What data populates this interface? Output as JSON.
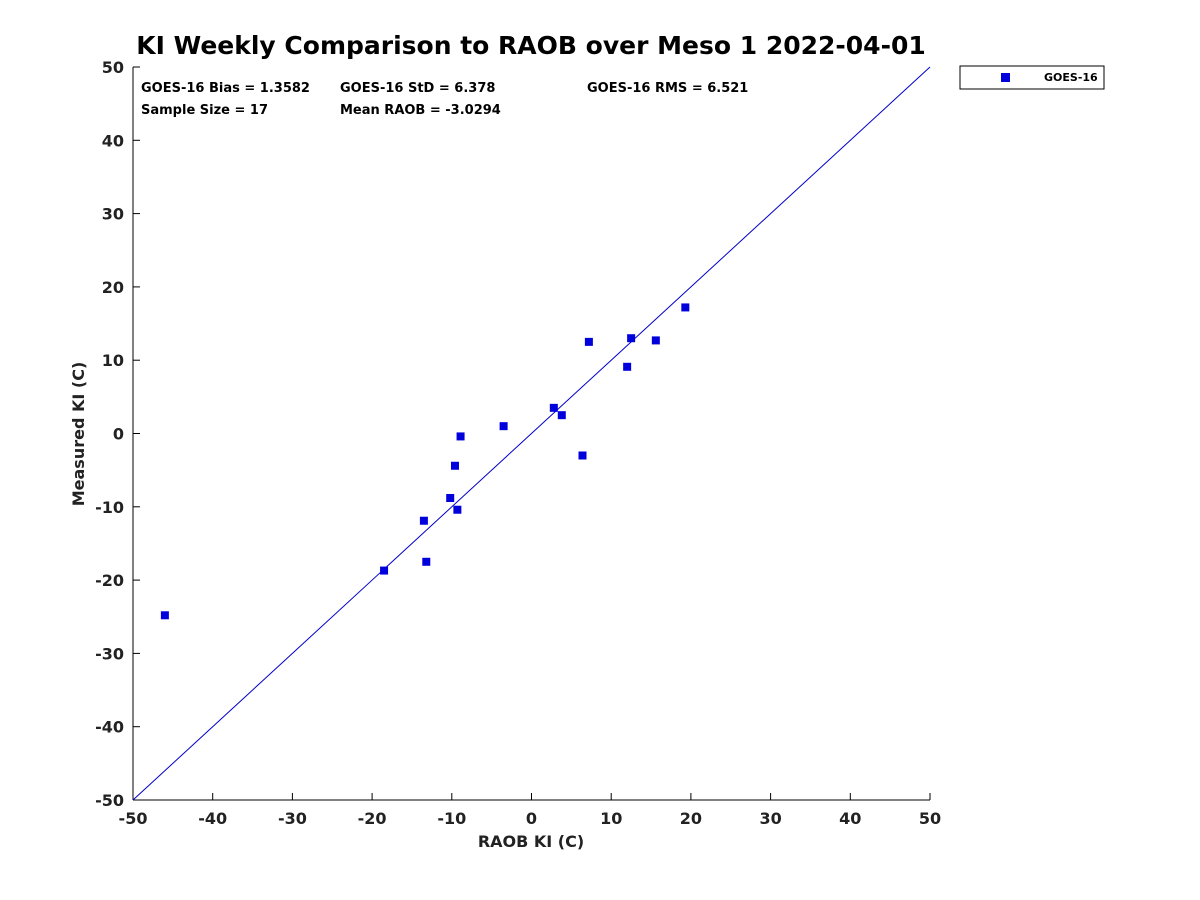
{
  "chart_data": {
    "type": "scatter",
    "title": "KI Weekly Comparison to RAOB over Meso 1 2022-04-01",
    "xlabel": "RAOB KI (C)",
    "ylabel": "Measured KI (C)",
    "xlim": [
      -50,
      50
    ],
    "ylim": [
      -50,
      50
    ],
    "xticks": [
      -50,
      -40,
      -30,
      -20,
      -10,
      0,
      10,
      20,
      30,
      40,
      50
    ],
    "yticks": [
      -50,
      -40,
      -30,
      -20,
      -10,
      0,
      10,
      20,
      30,
      40,
      50
    ],
    "grid": false,
    "legend_position": "outside-top-right",
    "reference_line": {
      "type": "one-to-one",
      "color": "#0000cc"
    },
    "stats": {
      "bias": "GOES-16 Bias = 1.3582",
      "std": "GOES-16 StD = 6.378",
      "rms": "GOES-16 RMS = 6.521",
      "sample": "Sample Size = 17",
      "mean": "Mean RAOB = -3.0294"
    },
    "series": [
      {
        "name": "GOES-16",
        "color": "#0000dd",
        "marker": "square",
        "points": [
          {
            "x": -46,
            "y": -24.8
          },
          {
            "x": -18.5,
            "y": -18.7
          },
          {
            "x": -13.5,
            "y": -11.9
          },
          {
            "x": -13.2,
            "y": -17.5
          },
          {
            "x": -10.2,
            "y": -8.8
          },
          {
            "x": -9.6,
            "y": -4.4
          },
          {
            "x": -9.3,
            "y": -10.4
          },
          {
            "x": -8.9,
            "y": -0.4
          },
          {
            "x": -3.5,
            "y": 1.0
          },
          {
            "x": 2.8,
            "y": 3.5
          },
          {
            "x": 3.8,
            "y": 2.5
          },
          {
            "x": 6.4,
            "y": -3.0
          },
          {
            "x": 7.2,
            "y": 12.5
          },
          {
            "x": 12.0,
            "y": 9.1
          },
          {
            "x": 12.5,
            "y": 13.0
          },
          {
            "x": 15.6,
            "y": 12.7
          },
          {
            "x": 19.3,
            "y": 17.2
          }
        ]
      }
    ]
  }
}
